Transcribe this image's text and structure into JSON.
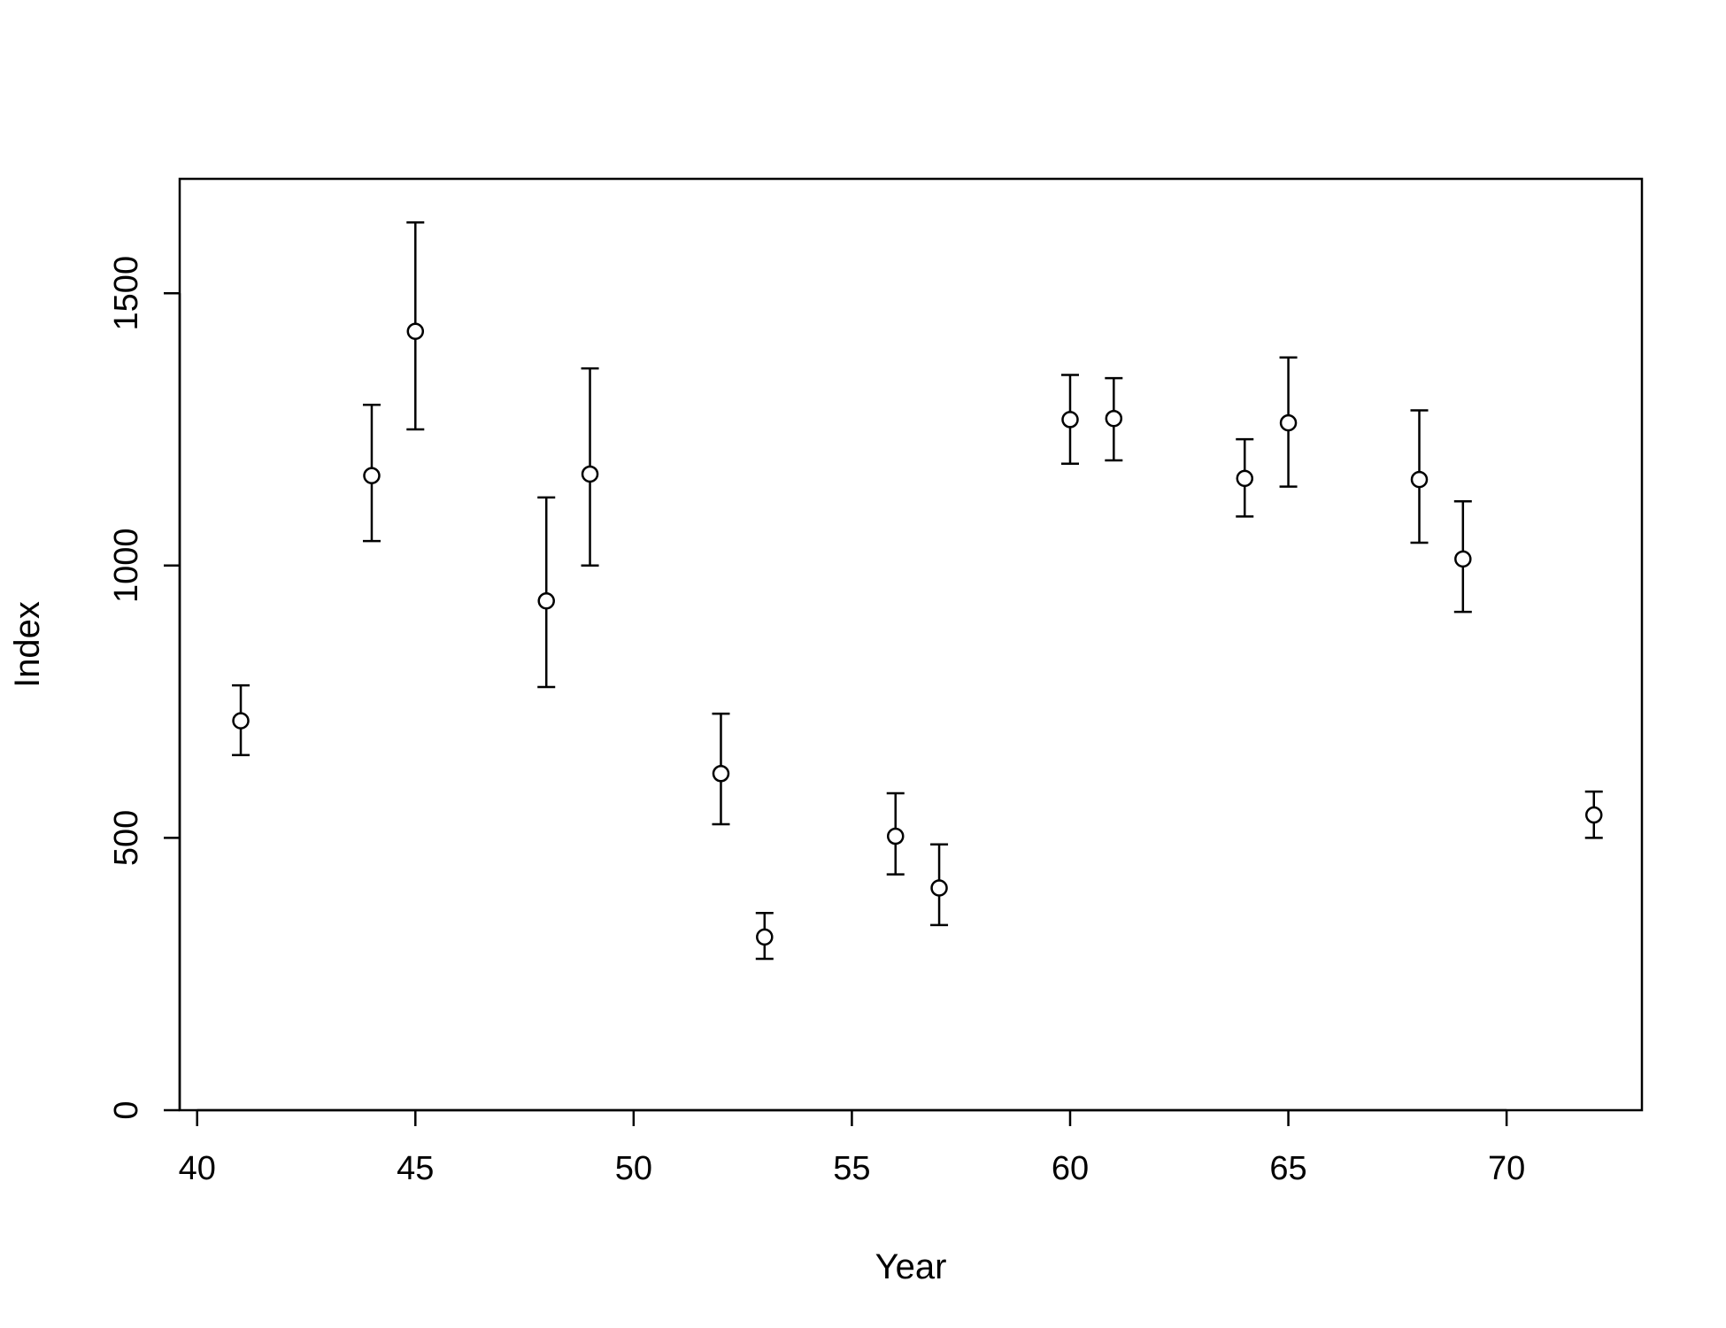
{
  "chart_data": {
    "type": "scatter",
    "title": "",
    "xlabel": "Year",
    "ylabel": "Index",
    "xlim": [
      39.6,
      73.1
    ],
    "ylim": [
      0,
      1710
    ],
    "x_ticks": [
      40,
      45,
      50,
      55,
      60,
      65,
      70
    ],
    "y_ticks": [
      0,
      500,
      1000,
      1500
    ],
    "grid": false,
    "legend": "none",
    "colors": {
      "stroke": "#000000",
      "point_fill": "#ffffff"
    },
    "points": [
      {
        "x": 41,
        "y": 715,
        "lower": 652,
        "upper": 780
      },
      {
        "x": 44,
        "y": 1165,
        "lower": 1045,
        "upper": 1295
      },
      {
        "x": 45,
        "y": 1430,
        "lower": 1250,
        "upper": 1630
      },
      {
        "x": 48,
        "y": 935,
        "lower": 777,
        "upper": 1125
      },
      {
        "x": 49,
        "y": 1168,
        "lower": 1000,
        "upper": 1362
      },
      {
        "x": 52,
        "y": 618,
        "lower": 525,
        "upper": 728
      },
      {
        "x": 53,
        "y": 318,
        "lower": 278,
        "upper": 362
      },
      {
        "x": 56,
        "y": 503,
        "lower": 433,
        "upper": 582
      },
      {
        "x": 57,
        "y": 408,
        "lower": 340,
        "upper": 488
      },
      {
        "x": 60,
        "y": 1268,
        "lower": 1187,
        "upper": 1350
      },
      {
        "x": 61,
        "y": 1270,
        "lower": 1193,
        "upper": 1344
      },
      {
        "x": 64,
        "y": 1160,
        "lower": 1090,
        "upper": 1232
      },
      {
        "x": 65,
        "y": 1262,
        "lower": 1145,
        "upper": 1382
      },
      {
        "x": 68,
        "y": 1158,
        "lower": 1042,
        "upper": 1285
      },
      {
        "x": 69,
        "y": 1012,
        "lower": 915,
        "upper": 1118
      },
      {
        "x": 72,
        "y": 542,
        "lower": 500,
        "upper": 585
      }
    ]
  }
}
